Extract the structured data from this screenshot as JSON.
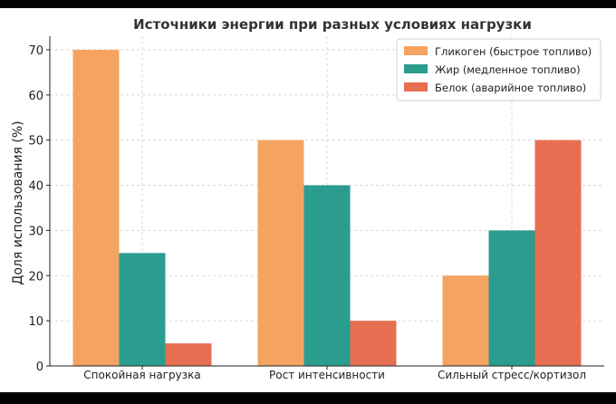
{
  "chart_data": {
    "type": "bar",
    "title": "Источники энергии при разных условиях нагрузки",
    "xlabel": "",
    "ylabel": "Доля использования (%)",
    "ylim": [
      0,
      73
    ],
    "yticks": [
      0,
      10,
      20,
      30,
      40,
      50,
      60,
      70
    ],
    "categories": [
      "Спокойная нагрузка",
      "Рост интенсивности",
      "Сильный стресс/кортизол"
    ],
    "series": [
      {
        "name": "Гликоген (быстрое топливо)",
        "color": "#F4A460",
        "values": [
          70,
          50,
          20
        ]
      },
      {
        "name": "Жир (медленное топливо)",
        "color": "#2A9D8F",
        "values": [
          25,
          40,
          30
        ]
      },
      {
        "name": "Белок (аварийное топливо)",
        "color": "#E76F51",
        "values": [
          5,
          10,
          50
        ]
      }
    ],
    "grid": true,
    "legend_position": "top-right"
  }
}
